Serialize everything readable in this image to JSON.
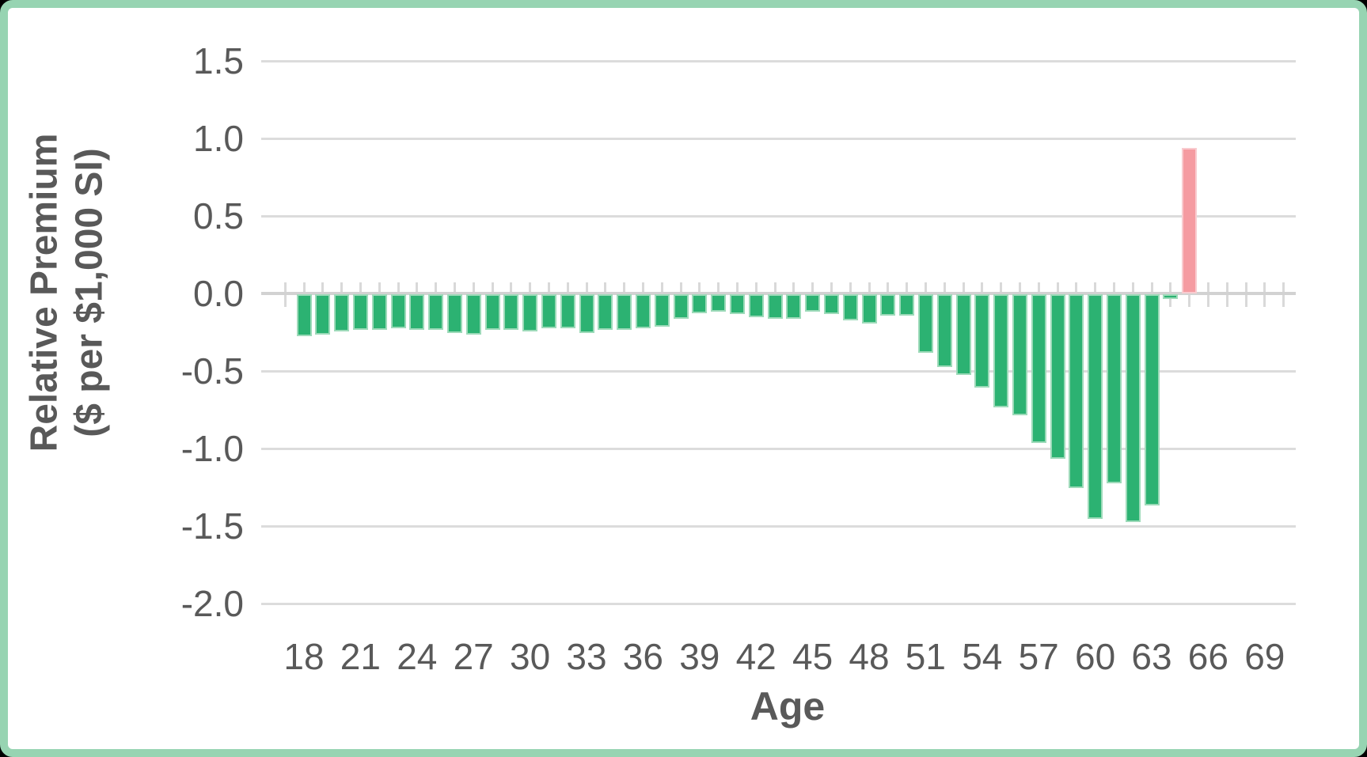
{
  "frame": {
    "border_color": "#97d4b2",
    "background_color": "#ffffff"
  },
  "chart_data": {
    "type": "bar",
    "title": "",
    "xlabel": "Age",
    "ylabel_lines": [
      "Relative Premium",
      "($ per $1,000 SI)"
    ],
    "legend": "none",
    "grid": "horizontal",
    "categories": [
      18,
      19,
      20,
      21,
      22,
      23,
      24,
      25,
      26,
      27,
      28,
      29,
      30,
      31,
      32,
      33,
      34,
      35,
      36,
      37,
      38,
      39,
      40,
      41,
      42,
      43,
      44,
      45,
      46,
      47,
      48,
      49,
      50,
      51,
      52,
      53,
      54,
      55,
      56,
      57,
      58,
      59,
      60,
      61,
      62,
      63,
      64,
      65
    ],
    "values": [
      -0.27,
      -0.26,
      -0.24,
      -0.23,
      -0.23,
      -0.22,
      -0.23,
      -0.23,
      -0.25,
      -0.26,
      -0.23,
      -0.23,
      -0.24,
      -0.22,
      -0.22,
      -0.25,
      -0.23,
      -0.23,
      -0.22,
      -0.21,
      -0.16,
      -0.12,
      -0.11,
      -0.13,
      -0.15,
      -0.16,
      -0.16,
      -0.11,
      -0.13,
      -0.17,
      -0.19,
      -0.14,
      -0.14,
      -0.38,
      -0.47,
      -0.52,
      -0.6,
      -0.73,
      -0.78,
      -0.96,
      -1.06,
      -1.25,
      -1.45,
      -1.22,
      -1.47,
      -1.36,
      -0.03,
      0.94
    ],
    "highlight_category": 65,
    "bar_color_default": "#2cb272",
    "bar_color_highlight": "#f59ba1",
    "ylim": [
      -2.0,
      1.5
    ],
    "ytick_labels": [
      "1.5",
      "1.0",
      "0.5",
      "0.0",
      "-0.5",
      "-1.0",
      "-1.5",
      "-2.0"
    ],
    "ytick_values": [
      1.5,
      1.0,
      0.5,
      0.0,
      -0.5,
      -1.0,
      -1.5,
      -2.0
    ],
    "xtick_labels": [
      18,
      21,
      24,
      27,
      30,
      33,
      36,
      39,
      42,
      45,
      48,
      51,
      54,
      57,
      60,
      63,
      66,
      69
    ],
    "text_color": "#595959",
    "gridline_color": "#dcdcdc",
    "axis_color": "#d2d2d2"
  }
}
